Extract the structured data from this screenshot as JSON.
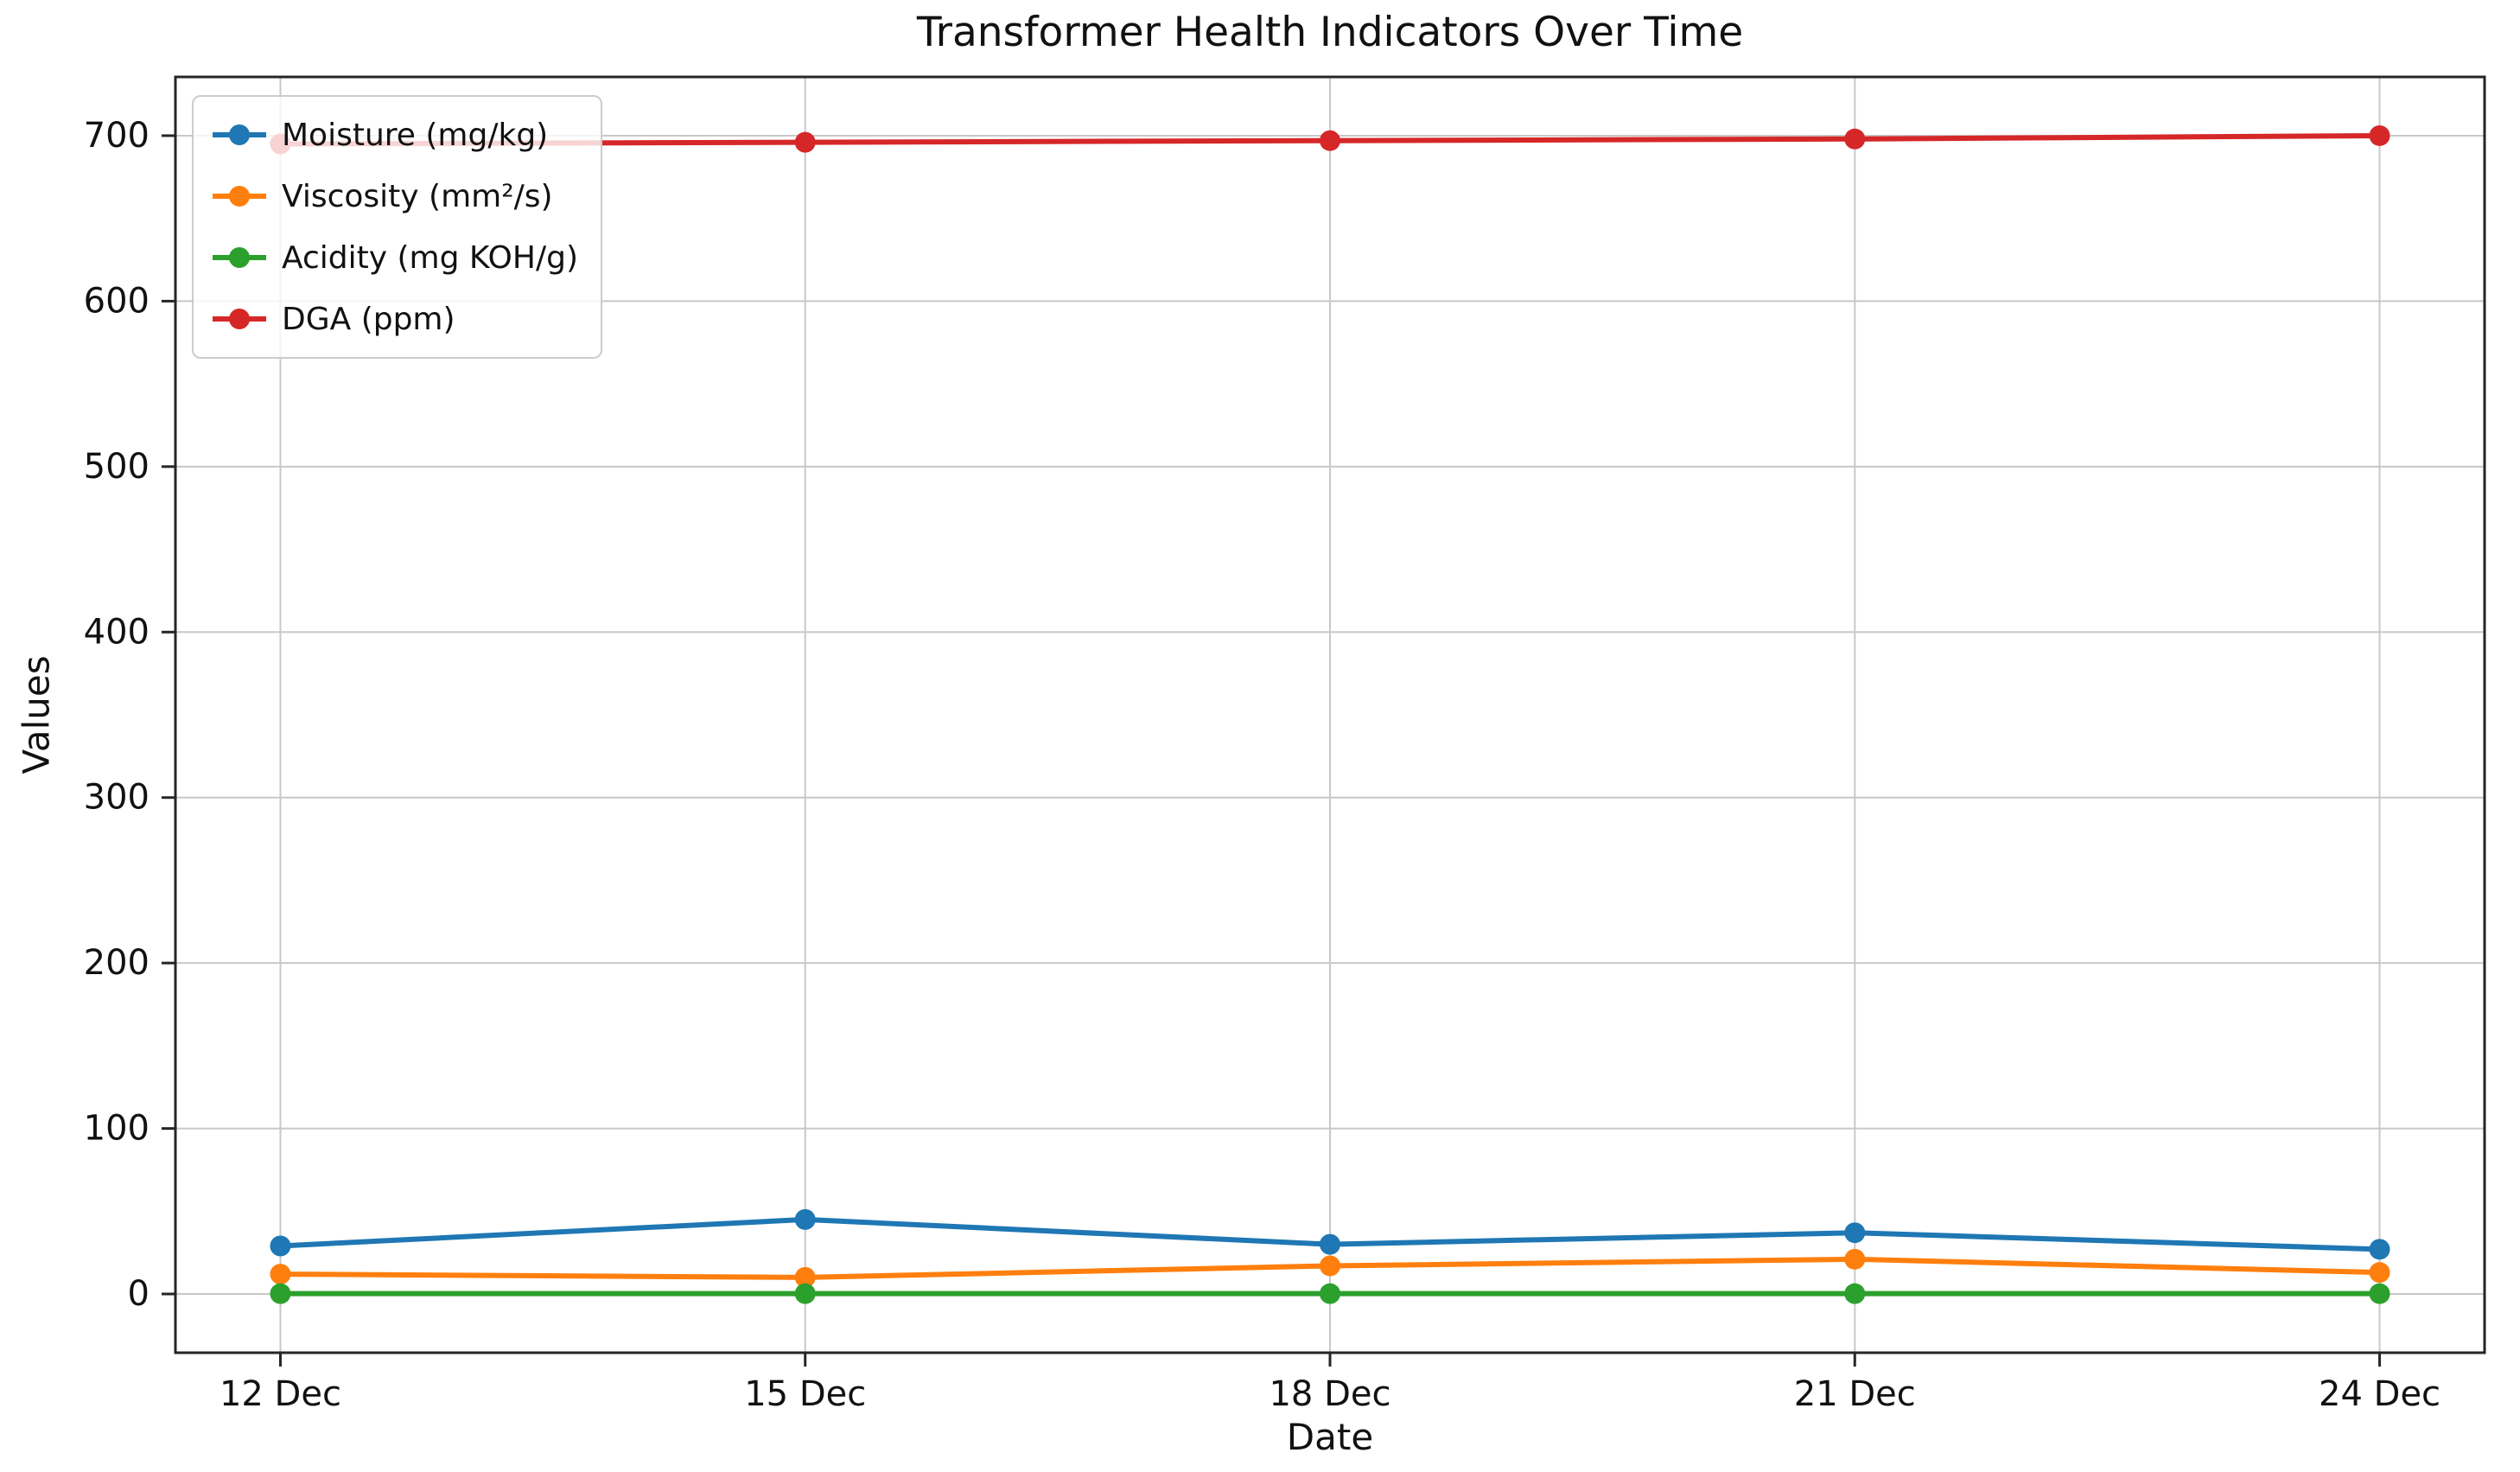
{
  "chart_data": {
    "type": "line",
    "title": "Transformer Health Indicators Over Time",
    "xlabel": "Date",
    "ylabel": "Values",
    "categories": [
      "12 Dec",
      "15 Dec",
      "18 Dec",
      "21 Dec",
      "24 Dec"
    ],
    "series": [
      {
        "name": "Moisture (mg/kg)",
        "color": "#1f77b4",
        "values": [
          29,
          45,
          30,
          37,
          27
        ]
      },
      {
        "name": "Viscosity (mm²/s)",
        "color": "#ff7f0e",
        "values": [
          12,
          10,
          17,
          21,
          13
        ]
      },
      {
        "name": "Acidity (mg KOH/g)",
        "color": "#2ca02c",
        "values": [
          0.2,
          0.2,
          0.2,
          0.2,
          0.2
        ]
      },
      {
        "name": "DGA (ppm)",
        "color": "#d62728",
        "values": [
          695,
          696,
          697,
          698,
          700
        ]
      }
    ],
    "y_ticks": [
      0,
      100,
      200,
      300,
      400,
      500,
      600,
      700
    ],
    "ylim": [
      -35.5,
      735.5
    ],
    "grid": true,
    "legend_position": "upper-left",
    "grid_color": "#c8c8c8",
    "axis_color": "#262626"
  }
}
